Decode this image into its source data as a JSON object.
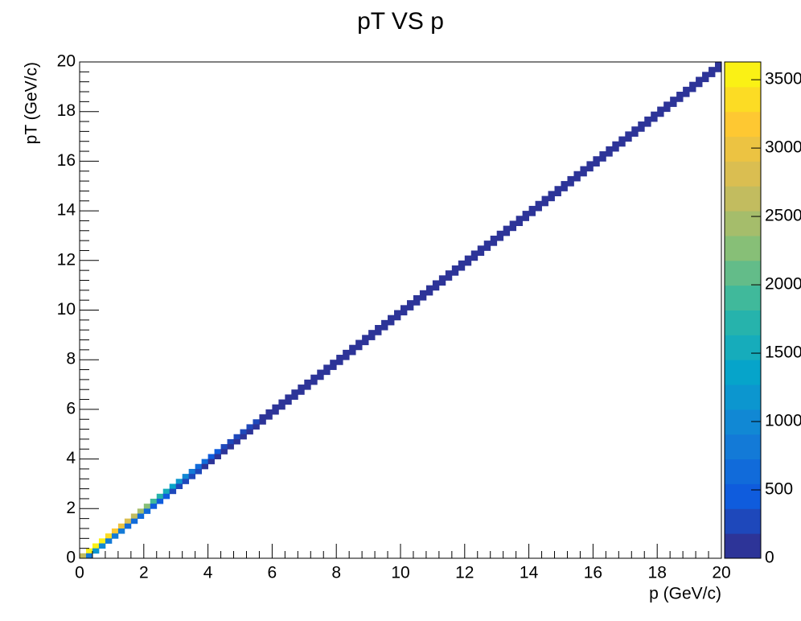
{
  "chart_data": {
    "type": "heatmap",
    "title": "pT VS p",
    "xlabel": "p (GeV/c)",
    "ylabel": "pT (GeV/c)",
    "xlim": [
      0,
      20
    ],
    "xticks": [
      0,
      2,
      4,
      6,
      8,
      10,
      12,
      14,
      16,
      18,
      20
    ],
    "ylim": [
      0,
      20
    ],
    "yticks": [
      0,
      2,
      4,
      6,
      8,
      10,
      12,
      14,
      16,
      18,
      20
    ],
    "zlim": [
      0,
      3630
    ],
    "zticks": [
      0,
      500,
      1000,
      1500,
      2000,
      2500,
      3000,
      3500
    ],
    "bins": [
      100,
      100
    ],
    "colorscale": [
      "#352a87",
      "#0f5cdd",
      "#1481d6",
      "#06a4ca",
      "#2eb7a4",
      "#87bf77",
      "#d1bb59",
      "#fec832",
      "#f9fb0e"
    ],
    "cells": [
      [
        0,
        0,
        2600
      ],
      [
        0.2,
        0.2,
        3500
      ],
      [
        0.4,
        0.4,
        3600
      ],
      [
        0.6,
        0.6,
        3450
      ],
      [
        0.8,
        0.8,
        3300
      ],
      [
        1,
        1,
        3150
      ],
      [
        1.2,
        1.2,
        3000
      ],
      [
        1.4,
        1.4,
        2800
      ],
      [
        1.6,
        1.6,
        2600
      ],
      [
        1.8,
        1.8,
        2400
      ],
      [
        2,
        2,
        2200
      ],
      [
        2.2,
        2.2,
        1950
      ],
      [
        2.4,
        2.4,
        1750
      ],
      [
        2.6,
        2.6,
        1550
      ],
      [
        2.8,
        2.8,
        1350
      ],
      [
        3,
        3,
        1150
      ],
      [
        3.2,
        3.2,
        1000
      ],
      [
        3.4,
        3.4,
        850
      ],
      [
        3.6,
        3.6,
        720
      ],
      [
        3.8,
        3.8,
        600
      ],
      [
        4,
        4,
        500
      ],
      [
        4.2,
        4.2,
        420
      ],
      [
        4.4,
        4.4,
        350
      ],
      [
        4.6,
        4.6,
        300
      ],
      [
        4.8,
        4.8,
        250
      ],
      [
        5,
        5,
        210
      ],
      [
        5.2,
        5.2,
        190
      ],
      [
        5.4,
        5.4,
        185
      ],
      [
        5.6,
        5.6,
        180
      ],
      [
        5.8,
        5.8,
        175
      ],
      [
        6,
        6,
        170
      ],
      [
        6.2,
        6.2,
        165
      ],
      [
        6.4,
        6.4,
        160
      ],
      [
        6.6,
        6.6,
        155
      ],
      [
        6.8,
        6.8,
        150
      ],
      [
        7,
        7,
        145
      ],
      [
        7.2,
        7.2,
        140
      ],
      [
        7.4,
        7.4,
        136
      ],
      [
        7.6,
        7.6,
        132
      ],
      [
        7.8,
        7.8,
        128
      ],
      [
        8,
        8,
        124
      ],
      [
        8.2,
        8.2,
        120
      ],
      [
        8.4,
        8.4,
        116
      ],
      [
        8.6,
        8.6,
        112
      ],
      [
        8.8,
        8.8,
        108
      ],
      [
        9,
        9,
        104
      ],
      [
        9.2,
        9.2,
        100
      ],
      [
        9.4,
        9.4,
        97
      ],
      [
        9.6,
        9.6,
        94
      ],
      [
        9.8,
        9.8,
        91
      ],
      [
        10,
        10,
        88
      ],
      [
        10.2,
        10.2,
        85
      ],
      [
        10.4,
        10.4,
        82
      ],
      [
        10.6,
        10.6,
        80
      ],
      [
        10.8,
        10.8,
        78
      ],
      [
        11,
        11,
        76
      ],
      [
        11.2,
        11.2,
        74
      ],
      [
        11.4,
        11.4,
        72
      ],
      [
        11.6,
        11.6,
        70
      ],
      [
        11.8,
        11.8,
        68
      ],
      [
        12,
        12,
        66
      ],
      [
        12.2,
        12.2,
        64
      ],
      [
        12.4,
        12.4,
        62
      ],
      [
        12.6,
        12.6,
        60
      ],
      [
        12.8,
        12.8,
        58
      ],
      [
        13,
        13,
        56
      ],
      [
        13.2,
        13.2,
        55
      ],
      [
        13.4,
        13.4,
        54
      ],
      [
        13.6,
        13.6,
        53
      ],
      [
        13.8,
        13.8,
        52
      ],
      [
        14,
        14,
        51
      ],
      [
        14.2,
        14.2,
        50
      ],
      [
        14.4,
        14.4,
        49
      ],
      [
        14.6,
        14.6,
        48
      ],
      [
        14.8,
        14.8,
        47
      ],
      [
        15,
        15,
        46
      ],
      [
        15.2,
        15.2,
        45
      ],
      [
        15.4,
        15.4,
        44
      ],
      [
        15.6,
        15.6,
        43
      ],
      [
        15.8,
        15.8,
        42
      ],
      [
        16,
        16,
        41
      ],
      [
        16.2,
        16.2,
        40
      ],
      [
        16.4,
        16.4,
        39
      ],
      [
        16.6,
        16.6,
        38
      ],
      [
        16.8,
        16.8,
        37
      ],
      [
        17,
        17,
        36
      ],
      [
        17.2,
        17.2,
        35
      ],
      [
        17.4,
        17.4,
        34
      ],
      [
        17.6,
        17.6,
        33
      ],
      [
        17.8,
        17.8,
        32
      ],
      [
        18,
        18,
        31
      ],
      [
        18.2,
        18.2,
        30
      ],
      [
        18.4,
        18.4,
        29
      ],
      [
        18.6,
        18.6,
        28
      ],
      [
        18.8,
        18.8,
        27
      ],
      [
        19,
        19,
        27
      ],
      [
        19.2,
        19.2,
        26
      ],
      [
        19.4,
        19.4,
        26
      ],
      [
        19.6,
        19.6,
        25
      ],
      [
        19.8,
        19.8,
        25
      ],
      [
        0.2,
        0,
        900
      ],
      [
        0.4,
        0.2,
        1100
      ],
      [
        0.6,
        0.4,
        1000
      ],
      [
        0.8,
        0.6,
        900
      ],
      [
        1,
        0.8,
        850
      ],
      [
        1.2,
        1,
        800
      ],
      [
        1.4,
        1.2,
        700
      ],
      [
        1.6,
        1.4,
        650
      ],
      [
        1.8,
        1.6,
        600
      ],
      [
        2,
        1.8,
        550
      ],
      [
        2.2,
        2,
        500
      ],
      [
        2.4,
        2.2,
        450
      ],
      [
        2.6,
        2.4,
        400
      ],
      [
        2.8,
        2.6,
        350
      ],
      [
        3,
        2.8,
        300
      ],
      [
        3.2,
        3,
        260
      ],
      [
        3.4,
        3.2,
        220
      ],
      [
        3.6,
        3.4,
        190
      ],
      [
        3.8,
        3.6,
        160
      ],
      [
        4,
        3.8,
        140
      ],
      [
        4.2,
        4,
        120
      ],
      [
        4.4,
        4.2,
        110
      ],
      [
        4.6,
        4.4,
        100
      ],
      [
        4.8,
        4.6,
        95
      ],
      [
        5,
        4.8,
        90
      ],
      [
        5.2,
        5,
        85
      ],
      [
        5.4,
        5.2,
        82
      ],
      [
        5.6,
        5.4,
        80
      ],
      [
        5.8,
        5.6,
        78
      ],
      [
        6,
        5.8,
        76
      ],
      [
        6.2,
        6,
        74
      ],
      [
        6.4,
        6.2,
        72
      ],
      [
        6.6,
        6.4,
        70
      ],
      [
        6.8,
        6.6,
        68
      ],
      [
        7,
        6.8,
        66
      ],
      [
        7.2,
        7,
        64
      ],
      [
        7.4,
        7.2,
        62
      ],
      [
        7.6,
        7.4,
        60
      ],
      [
        7.8,
        7.6,
        58
      ],
      [
        8,
        7.8,
        56
      ],
      [
        8.2,
        8,
        54
      ],
      [
        8.4,
        8.2,
        52
      ],
      [
        8.6,
        8.4,
        50
      ],
      [
        8.8,
        8.6,
        48
      ],
      [
        9,
        8.8,
        46
      ],
      [
        9.2,
        9,
        45
      ],
      [
        9.4,
        9.2,
        44
      ],
      [
        9.6,
        9.4,
        43
      ],
      [
        9.8,
        9.6,
        42
      ],
      [
        10,
        9.8,
        41
      ],
      [
        10.2,
        10,
        40
      ],
      [
        10.4,
        10.2,
        39
      ],
      [
        10.6,
        10.4,
        38
      ],
      [
        10.8,
        10.6,
        37
      ],
      [
        11,
        10.8,
        36
      ],
      [
        11.2,
        11,
        35
      ],
      [
        11.4,
        11.2,
        34
      ],
      [
        11.6,
        11.4,
        33
      ],
      [
        11.8,
        11.6,
        32
      ],
      [
        12,
        11.8,
        31
      ],
      [
        12.2,
        12,
        30
      ],
      [
        12.4,
        12.2,
        29
      ],
      [
        12.6,
        12.4,
        28
      ],
      [
        12.8,
        12.6,
        27
      ],
      [
        13,
        12.8,
        26
      ],
      [
        13.2,
        13,
        25
      ],
      [
        13.4,
        13.2,
        25
      ],
      [
        13.6,
        13.4,
        24
      ],
      [
        13.8,
        13.6,
        24
      ],
      [
        14,
        13.8,
        23
      ],
      [
        14.2,
        14,
        23
      ],
      [
        14.4,
        14.2,
        22
      ],
      [
        14.6,
        14.4,
        22
      ],
      [
        14.8,
        14.6,
        21
      ],
      [
        15,
        14.8,
        21
      ],
      [
        15.2,
        15,
        20
      ],
      [
        15.4,
        15.2,
        20
      ],
      [
        15.6,
        15.4,
        19
      ],
      [
        15.8,
        15.6,
        19
      ],
      [
        16,
        15.8,
        18
      ],
      [
        16.2,
        16,
        18
      ],
      [
        16.4,
        16.2,
        17
      ],
      [
        16.6,
        16.4,
        17
      ],
      [
        16.8,
        16.6,
        16
      ],
      [
        17,
        16.8,
        16
      ],
      [
        17.2,
        17,
        15
      ],
      [
        17.4,
        17.2,
        15
      ],
      [
        17.6,
        17.4,
        14
      ],
      [
        17.8,
        17.6,
        14
      ],
      [
        18,
        17.8,
        13
      ],
      [
        18.2,
        18,
        13
      ],
      [
        18.4,
        18.2,
        12
      ],
      [
        18.6,
        18.4,
        12
      ],
      [
        18.8,
        18.6,
        11
      ],
      [
        19,
        18.8,
        11
      ],
      [
        19.2,
        19,
        10
      ],
      [
        19.4,
        19.2,
        10
      ],
      [
        19.6,
        19.4,
        9
      ],
      [
        19.8,
        19.6,
        9
      ]
    ]
  }
}
